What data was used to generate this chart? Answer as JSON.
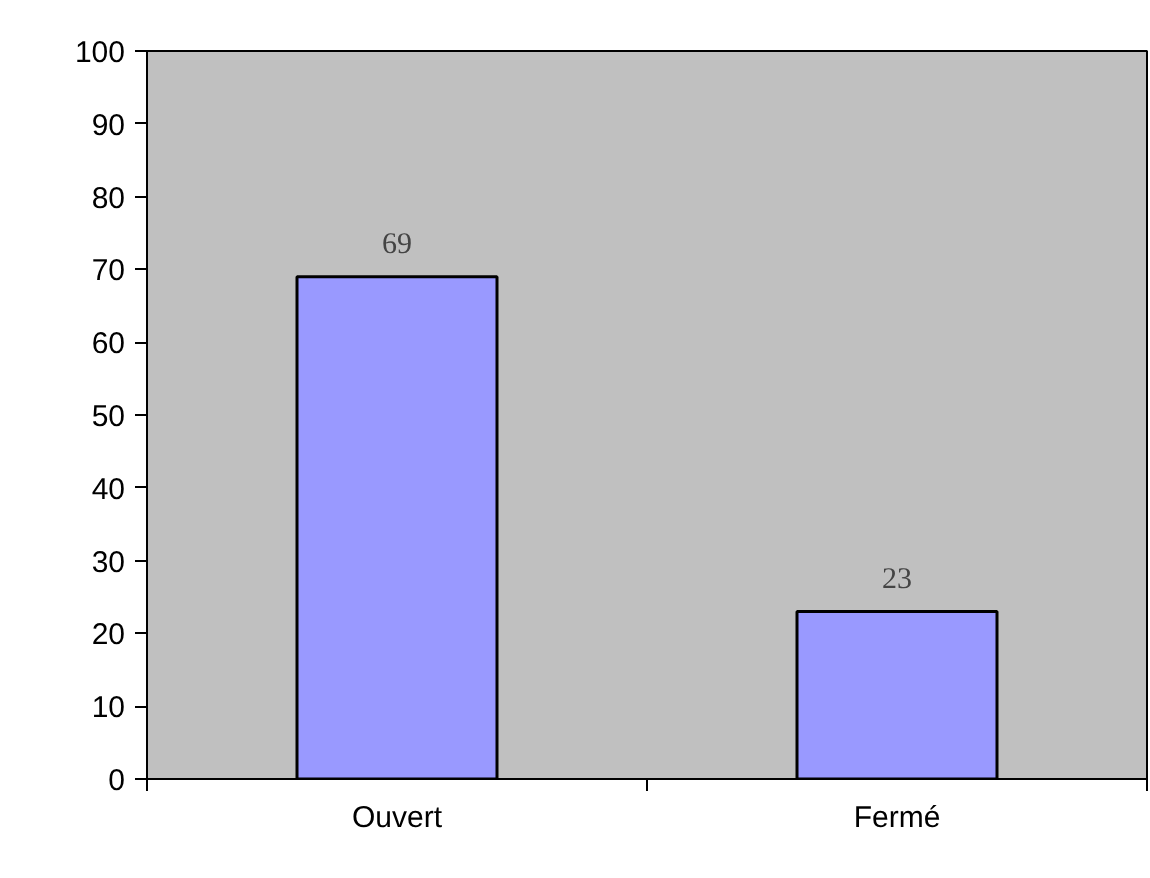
{
  "chart_data": {
    "type": "bar",
    "categories": [
      "Ouvert",
      "Fermé"
    ],
    "values": [
      69,
      23
    ],
    "color": "#9999ff",
    "ylim": [
      0,
      100
    ],
    "yticks": [
      0,
      10,
      20,
      30,
      40,
      50,
      60,
      70,
      80,
      90,
      100
    ],
    "grid": false,
    "data_labels": true
  }
}
